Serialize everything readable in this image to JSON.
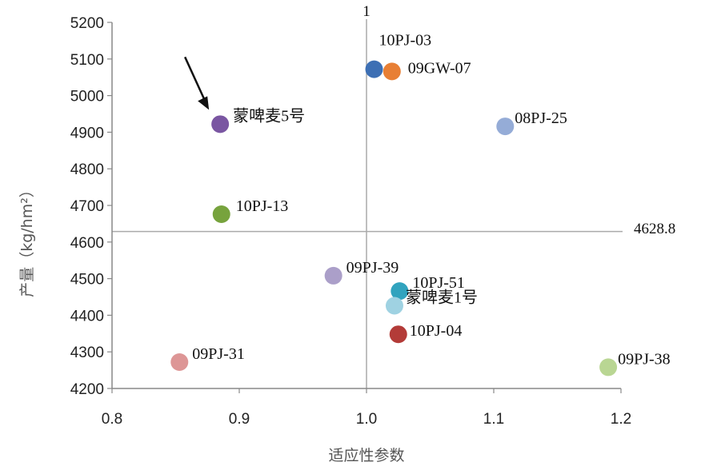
{
  "chart_data": {
    "type": "scatter",
    "xlabel": "适应性参数",
    "ylabel": "产量（kg/hm²）",
    "xlim": [
      0.8,
      1.2
    ],
    "ylim": [
      4200,
      5200
    ],
    "xticks": [
      "0.8",
      "0.9",
      "1.0",
      "1.1",
      "1.2"
    ],
    "yticks": [
      "4200",
      "4300",
      "4400",
      "4500",
      "4600",
      "4700",
      "4800",
      "4900",
      "5000",
      "5100",
      "5200"
    ],
    "reference_lines": {
      "x": 1,
      "x_label": "1",
      "y": 4628.8,
      "y_label": "4628.8"
    },
    "points": [
      {
        "label": "10PJ-03",
        "x": 1.006,
        "y": 5072,
        "color": "#3d6fb4"
      },
      {
        "label": "09GW-07",
        "x": 1.02,
        "y": 5066,
        "color": "#e87f34"
      },
      {
        "label": "蒙啤麦5号",
        "x": 0.885,
        "y": 4922,
        "color": "#7a56a2"
      },
      {
        "label": "08PJ-25",
        "x": 1.109,
        "y": 4916,
        "color": "#95acd7"
      },
      {
        "label": "10PJ-13",
        "x": 0.886,
        "y": 4676,
        "color": "#77a33d"
      },
      {
        "label": "09PJ-39",
        "x": 0.974,
        "y": 4508,
        "color": "#ab9fc9"
      },
      {
        "label": "10PJ-51",
        "x": 1.026,
        "y": 4466,
        "color": "#31a3be"
      },
      {
        "label": "蒙啤麦1号",
        "x": 1.022,
        "y": 4426,
        "color": "#9fd2e2"
      },
      {
        "label": "10PJ-04",
        "x": 1.025,
        "y": 4348,
        "color": "#b33b38"
      },
      {
        "label": "09PJ-31",
        "x": 0.853,
        "y": 4272,
        "color": "#dd9696"
      },
      {
        "label": "09PJ-38",
        "x": 1.19,
        "y": 4258,
        "color": "#b9d693"
      }
    ],
    "annotation": {
      "type": "arrow",
      "target": "蒙啤麦5号"
    }
  }
}
